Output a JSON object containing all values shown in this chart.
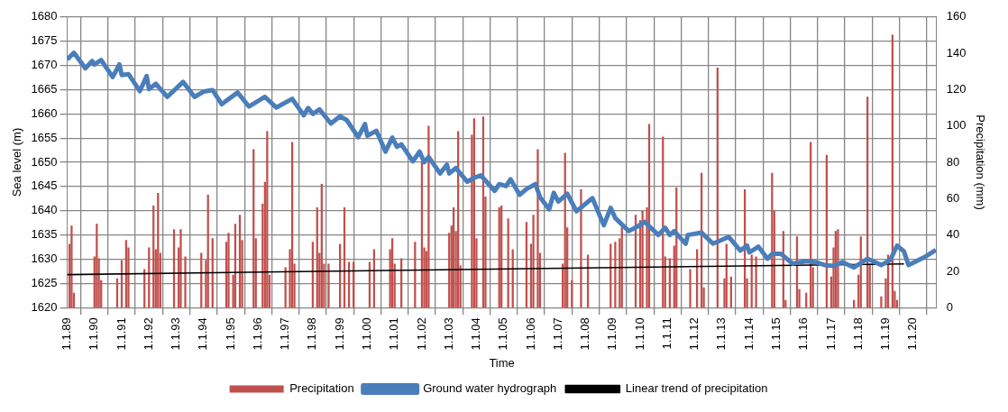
{
  "chart_data": {
    "type": "bar",
    "xlabel": "Time",
    "ylabel": "Sea level (m)",
    "y2label": "Precipitation (mm)",
    "xlim": [
      "1989-01-01",
      "2020-11-10"
    ],
    "xticks": [
      {
        "value": "1989-01-01",
        "label": "1.1.89"
      },
      {
        "value": "1990-01-01",
        "label": "1.1.90"
      },
      {
        "value": "1991-01-01",
        "label": "1.1.91"
      },
      {
        "value": "1992-01-01",
        "label": "1.1.92"
      },
      {
        "value": "1993-01-01",
        "label": "1.1.93"
      },
      {
        "value": "1994-01-01",
        "label": "1.1.94"
      },
      {
        "value": "1995-01-01",
        "label": "1.1.95"
      },
      {
        "value": "1996-01-01",
        "label": "1.1.96"
      },
      {
        "value": "1997-01-01",
        "label": "1.1.97"
      },
      {
        "value": "1998-01-01",
        "label": "1.1.98"
      },
      {
        "value": "1999-01-01",
        "label": "1.1.99"
      },
      {
        "value": "2000-01-01",
        "label": "1.1.00"
      },
      {
        "value": "2001-01-01",
        "label": "1.1.01"
      },
      {
        "value": "2002-01-01",
        "label": "1.1.02"
      },
      {
        "value": "2003-01-01",
        "label": "1.1.03"
      },
      {
        "value": "2004-01-01",
        "label": "1.1.04"
      },
      {
        "value": "2005-01-01",
        "label": "1.1.05"
      },
      {
        "value": "2006-01-01",
        "label": "1.1.06"
      },
      {
        "value": "2007-01-01",
        "label": "1.1.07"
      },
      {
        "value": "2008-01-01",
        "label": "1.1.08"
      },
      {
        "value": "2009-01-01",
        "label": "1.1.09"
      },
      {
        "value": "2010-01-01",
        "label": "1.1.10"
      },
      {
        "value": "2011-01-01",
        "label": "1.1.11"
      },
      {
        "value": "2012-01-01",
        "label": "1.1.12"
      },
      {
        "value": "2013-01-01",
        "label": "1.1.13"
      },
      {
        "value": "2014-01-01",
        "label": "1.1.14"
      },
      {
        "value": "2015-01-01",
        "label": "1.1.15"
      },
      {
        "value": "2016-01-01",
        "label": "1.1.16"
      },
      {
        "value": "2017-01-01",
        "label": "1.1.17"
      },
      {
        "value": "2018-01-01",
        "label": "1.1.18"
      },
      {
        "value": "2019-01-01",
        "label": "1.1.19"
      },
      {
        "value": "2020-01-01",
        "label": "1.1.20"
      }
    ],
    "ylim": [
      1620,
      1680
    ],
    "yticks": [
      1620,
      1625,
      1630,
      1635,
      1640,
      1645,
      1650,
      1655,
      1660,
      1665,
      1670,
      1675,
      1680
    ],
    "y2lim": [
      0,
      160
    ],
    "y2ticks": [
      0,
      20,
      40,
      60,
      80,
      100,
      120,
      140,
      160
    ],
    "grid": true,
    "legend": "bottom",
    "marker": "none",
    "line_style": "solid",
    "series": [
      {
        "name": "Precipitation",
        "axis": "y2",
        "color": "#c0504d",
        "x": [
          "1989-02",
          "1989-03",
          "1989-04",
          "1990-01",
          "1990-02",
          "1990-03",
          "1990-04",
          "1990-11",
          "1991-01",
          "1991-03",
          "1991-04",
          "1991-11",
          "1992-01",
          "1992-03",
          "1992-04",
          "1992-05",
          "1992-06",
          "1992-12",
          "1993-02",
          "1993-03",
          "1993-05",
          "1993-12",
          "1994-02",
          "1994-03",
          "1994-05",
          "1994-11",
          "1994-12",
          "1995-02",
          "1995-03",
          "1995-05",
          "1995-06",
          "1995-11",
          "1995-12",
          "1996-03",
          "1996-04",
          "1996-05",
          "1996-06",
          "1997-01",
          "1997-03",
          "1997-04",
          "1997-05",
          "1998-01",
          "1998-03",
          "1998-04",
          "1998-05",
          "1998-06",
          "1998-08",
          "1999-01",
          "1999-03",
          "1999-05",
          "1999-07",
          "2000-02",
          "2000-04",
          "2000-11",
          "2000-12",
          "2001-01",
          "2001-04",
          "2001-10",
          "2002-01",
          "2002-02",
          "2002-03",
          "2002-04",
          "2003-01",
          "2003-02",
          "2003-03",
          "2003-04",
          "2003-05",
          "2003-06",
          "2003-11",
          "2003-12",
          "2004-01",
          "2004-04",
          "2004-05",
          "2004-11",
          "2004-12",
          "2005-03",
          "2005-05",
          "2005-11",
          "2006-01",
          "2006-02",
          "2006-04",
          "2006-05",
          "2007-03",
          "2007-04",
          "2007-05",
          "2007-07",
          "2007-11",
          "2008-02",
          "2008-12",
          "2009-02",
          "2009-04",
          "2009-05",
          "2009-11",
          "2010-01",
          "2010-02",
          "2010-04",
          "2010-05",
          "2010-11",
          "2010-12",
          "2011-02",
          "2011-04",
          "2011-05",
          "2011-11",
          "2012-02",
          "2012-04",
          "2012-05",
          "2012-11",
          "2013-02",
          "2013-03",
          "2013-05",
          "2013-11",
          "2013-12",
          "2014-02",
          "2014-04",
          "2014-11",
          "2014-12",
          "2015-04",
          "2015-05",
          "2015-10",
          "2015-11",
          "2016-02",
          "2016-04",
          "2016-05",
          "2016-11",
          "2017-01",
          "2017-02",
          "2017-03",
          "2017-04",
          "2017-11",
          "2018-01",
          "2018-02",
          "2018-05",
          "2018-06",
          "2018-11",
          "2019-01",
          "2019-02",
          "2019-04",
          "2019-05",
          "2019-06"
        ],
        "values": [
          35,
          45,
          8,
          28,
          46,
          27,
          15,
          16,
          26,
          37,
          33,
          21,
          33,
          56,
          32,
          63,
          30,
          43,
          33,
          43,
          28,
          30,
          26,
          62,
          38,
          36,
          41,
          18,
          46,
          51,
          37,
          87,
          38,
          57,
          69,
          97,
          18,
          22,
          32,
          91,
          24,
          36,
          55,
          30,
          68,
          24,
          24,
          35,
          55,
          25,
          25,
          25,
          32,
          32,
          38,
          24,
          27,
          36,
          80,
          33,
          31,
          100,
          41,
          45,
          55,
          42,
          97,
          23,
          95,
          104,
          38,
          105,
          61,
          55,
          56,
          49,
          32,
          47,
          35,
          51,
          87,
          30,
          24,
          85,
          44,
          15,
          65,
          29,
          35,
          36,
          38,
          44,
          51,
          48,
          53,
          55,
          101,
          94,
          28,
          27,
          34,
          66,
          21,
          32,
          74,
          11,
          132,
          16,
          35,
          17,
          65,
          16,
          29,
          28,
          74,
          53,
          42,
          4,
          39,
          10,
          8,
          91,
          22,
          84,
          17,
          33,
          42,
          43,
          4,
          18,
          39,
          116,
          24,
          6,
          16,
          29,
          150,
          9,
          4
        ]
      },
      {
        "name": "Ground water hydrograph",
        "type": "line",
        "color": "#4a7ebb",
        "x": [
          "1989-01",
          "1989-04",
          "1989-09",
          "1989-12",
          "1990-01",
          "1990-04",
          "1990-09",
          "1990-12",
          "1991-01",
          "1991-04",
          "1991-09",
          "1991-12",
          "1992-01",
          "1992-04",
          "1992-09",
          "1993-04",
          "1993-09",
          "1994-01",
          "1994-05",
          "1994-09",
          "1995-04",
          "1995-09",
          "1996-04",
          "1996-09",
          "1997-04",
          "1997-09",
          "1997-11",
          "1998-01",
          "1998-04",
          "1998-09",
          "1999-01",
          "1999-04",
          "1999-09",
          "1999-12",
          "2000-01",
          "2000-05",
          "2000-09",
          "2000-12",
          "2001-02",
          "2001-04",
          "2001-09",
          "2001-12",
          "2002-02",
          "2002-04",
          "2002-09",
          "2002-12",
          "2003-01",
          "2003-04",
          "2003-09",
          "2003-12",
          "2004-03",
          "2004-09",
          "2004-11",
          "2005-02",
          "2005-04",
          "2005-08",
          "2005-11",
          "2006-03",
          "2006-05",
          "2006-09",
          "2006-11",
          "2007-01",
          "2007-05",
          "2007-09",
          "2008-04",
          "2008-09",
          "2008-12",
          "2009-02",
          "2009-08",
          "2009-12",
          "2010-03",
          "2010-09",
          "2010-12",
          "2011-02",
          "2011-04",
          "2011-09",
          "2011-10",
          "2012-04",
          "2012-09",
          "2013-04",
          "2013-09",
          "2013-12",
          "2014-01",
          "2014-05",
          "2014-09",
          "2014-11",
          "2015-03",
          "2015-08",
          "2016-02",
          "2016-06",
          "2016-10",
          "2017-02",
          "2017-06",
          "2017-11",
          "2018-05",
          "2018-11",
          "2019-03",
          "2019-06",
          "2019-09",
          "2019-11",
          "2020-06",
          "2020-11"
        ],
        "values": [
          1671.2,
          1672.6,
          1669.4,
          1670.9,
          1670.2,
          1671.1,
          1667.6,
          1670.2,
          1668.0,
          1668.2,
          1664.7,
          1667.8,
          1665.1,
          1666.2,
          1663.5,
          1666.6,
          1663.5,
          1664.6,
          1664.9,
          1662.0,
          1664.4,
          1661.5,
          1663.5,
          1661.3,
          1663.1,
          1659.7,
          1661.2,
          1660.0,
          1660.9,
          1658.0,
          1659.5,
          1658.7,
          1655.2,
          1657.9,
          1655.5,
          1656.5,
          1652.2,
          1655.1,
          1653.2,
          1653.7,
          1650.2,
          1652.2,
          1650.0,
          1651.1,
          1647.7,
          1649.5,
          1647.7,
          1648.8,
          1646.0,
          1646.8,
          1647.3,
          1644.1,
          1645.5,
          1645.1,
          1646.5,
          1643.3,
          1644.5,
          1645.5,
          1642.8,
          1640.3,
          1643.7,
          1641.9,
          1643.5,
          1639.9,
          1642.6,
          1637.0,
          1640.6,
          1638.5,
          1635.8,
          1636.8,
          1637.7,
          1635.0,
          1636.5,
          1635.0,
          1635.8,
          1633.2,
          1635.0,
          1635.5,
          1633.2,
          1634.6,
          1631.8,
          1632.8,
          1631.4,
          1632.6,
          1630.1,
          1631.1,
          1631.1,
          1629.1,
          1629.6,
          1629.4,
          1628.8,
          1628.6,
          1629.4,
          1628.3,
          1630.1,
          1628.8,
          1629.8,
          1632.8,
          1631.6,
          1628.8,
          1630.4,
          1631.9
        ]
      },
      {
        "name": "Linear trend of precipitation",
        "type": "line",
        "axis": "y2",
        "color": "#000000",
        "x": [
          "1989-01",
          "2019-09"
        ],
        "values": [
          18.2,
          24.1
        ]
      }
    ]
  }
}
